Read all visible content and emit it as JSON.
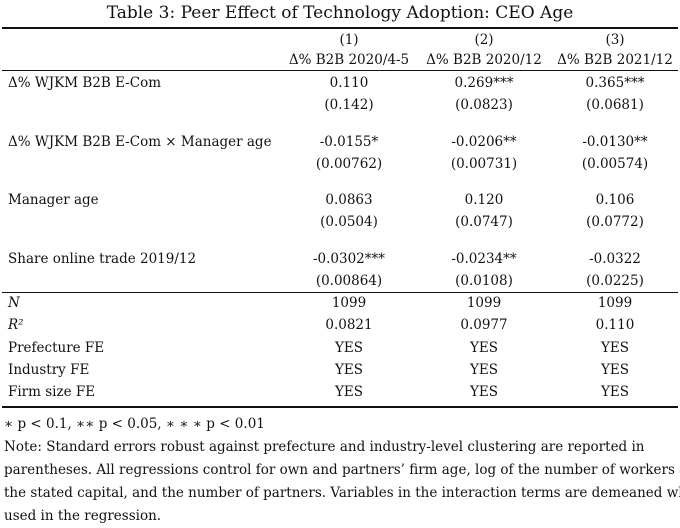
{
  "title": "Table 3: Peer Effect of Technology Adoption: CEO Age",
  "columns": [
    {
      "num": "(1)",
      "label": "Δ% B2B 2020/4-5"
    },
    {
      "num": "(2)",
      "label": "Δ% B2B 2020/12"
    },
    {
      "num": "(3)",
      "label": "Δ% B2B 2021/12"
    }
  ],
  "rows": [
    {
      "label": "Δ% WJKM B2B E-Com",
      "coef": [
        "0.110",
        "0.269***",
        "0.365***"
      ],
      "se": [
        "(0.142)",
        "(0.0823)",
        "(0.0681)"
      ]
    },
    {
      "label": "Δ% WJKM B2B E-Com × Manager age",
      "coef": [
        "-0.0155*",
        "-0.0206**",
        "-0.0130**"
      ],
      "se": [
        "(0.00762)",
        "(0.00731)",
        "(0.00574)"
      ]
    },
    {
      "label": "Manager age",
      "coef": [
        "0.0863",
        "0.120",
        "0.106"
      ],
      "se": [
        "(0.0504)",
        "(0.0747)",
        "(0.0772)"
      ]
    },
    {
      "label": "Share online trade 2019/12",
      "coef": [
        "-0.0302***",
        "-0.0234**",
        "-0.0322"
      ],
      "se": [
        "(0.00864)",
        "(0.0108)",
        "(0.0225)"
      ]
    }
  ],
  "stats": [
    {
      "label": "N",
      "vals": [
        "1099",
        "1099",
        "1099"
      ]
    },
    {
      "label": "R²",
      "vals": [
        "0.0821",
        "0.0977",
        "0.110"
      ]
    },
    {
      "label": "Prefecture FE",
      "vals": [
        "YES",
        "YES",
        "YES"
      ]
    },
    {
      "label": "Industry FE",
      "vals": [
        "YES",
        "YES",
        "YES"
      ]
    },
    {
      "label": "Firm size FE",
      "vals": [
        "YES",
        "YES",
        "YES"
      ]
    }
  ],
  "notes": {
    "significance": "∗ p < 0.1, ∗∗ p < 0.05, ∗ ∗ ∗ p < 0.01",
    "lines": [
      "Note: Standard errors robust against prefecture and industry-level clustering are reported in",
      "parentheses. All regressions control for own and partners’ firm age, log of the number of workers and",
      "the stated capital, and the number of partners. Variables in the interaction terms are demeaned when",
      "used in the regression."
    ]
  }
}
